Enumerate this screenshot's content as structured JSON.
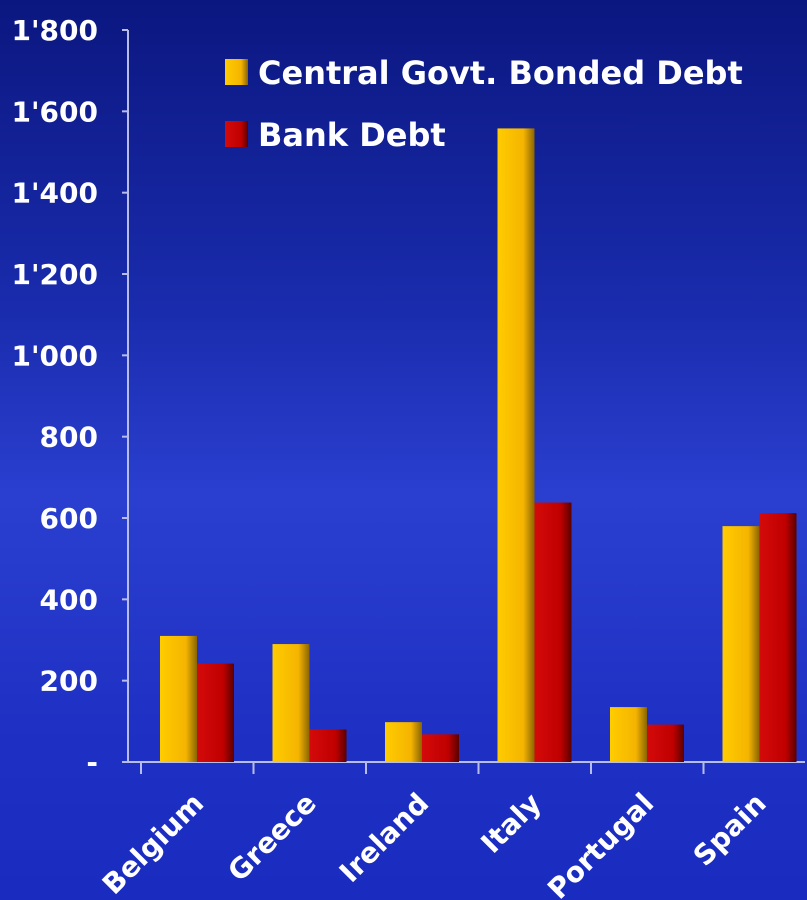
{
  "chart_data": {
    "type": "bar",
    "categories": [
      "Belgium",
      "Greece",
      "Ireland",
      "Italy",
      "Portugal",
      "Spain"
    ],
    "series": [
      {
        "name": "Central Govt. Bonded Debt",
        "values": [
          310,
          290,
          98,
          1558,
          135,
          580
        ],
        "color": "#f5b800"
      },
      {
        "name": "Bank Debt",
        "values": [
          242,
          80,
          68,
          638,
          92,
          612
        ],
        "color": "#c80808"
      }
    ],
    "ylim": [
      0,
      1800
    ],
    "yticks": [
      0,
      200,
      400,
      600,
      800,
      1000,
      1200,
      1400,
      1600,
      1800
    ],
    "ytick_labels": [
      "-",
      "200",
      "400",
      "600",
      "800",
      "1'000",
      "1'200",
      "1'400",
      "1'600",
      "1'800"
    ],
    "legend": "top-right",
    "grid": false,
    "title": "",
    "xlabel": "",
    "ylabel": ""
  }
}
